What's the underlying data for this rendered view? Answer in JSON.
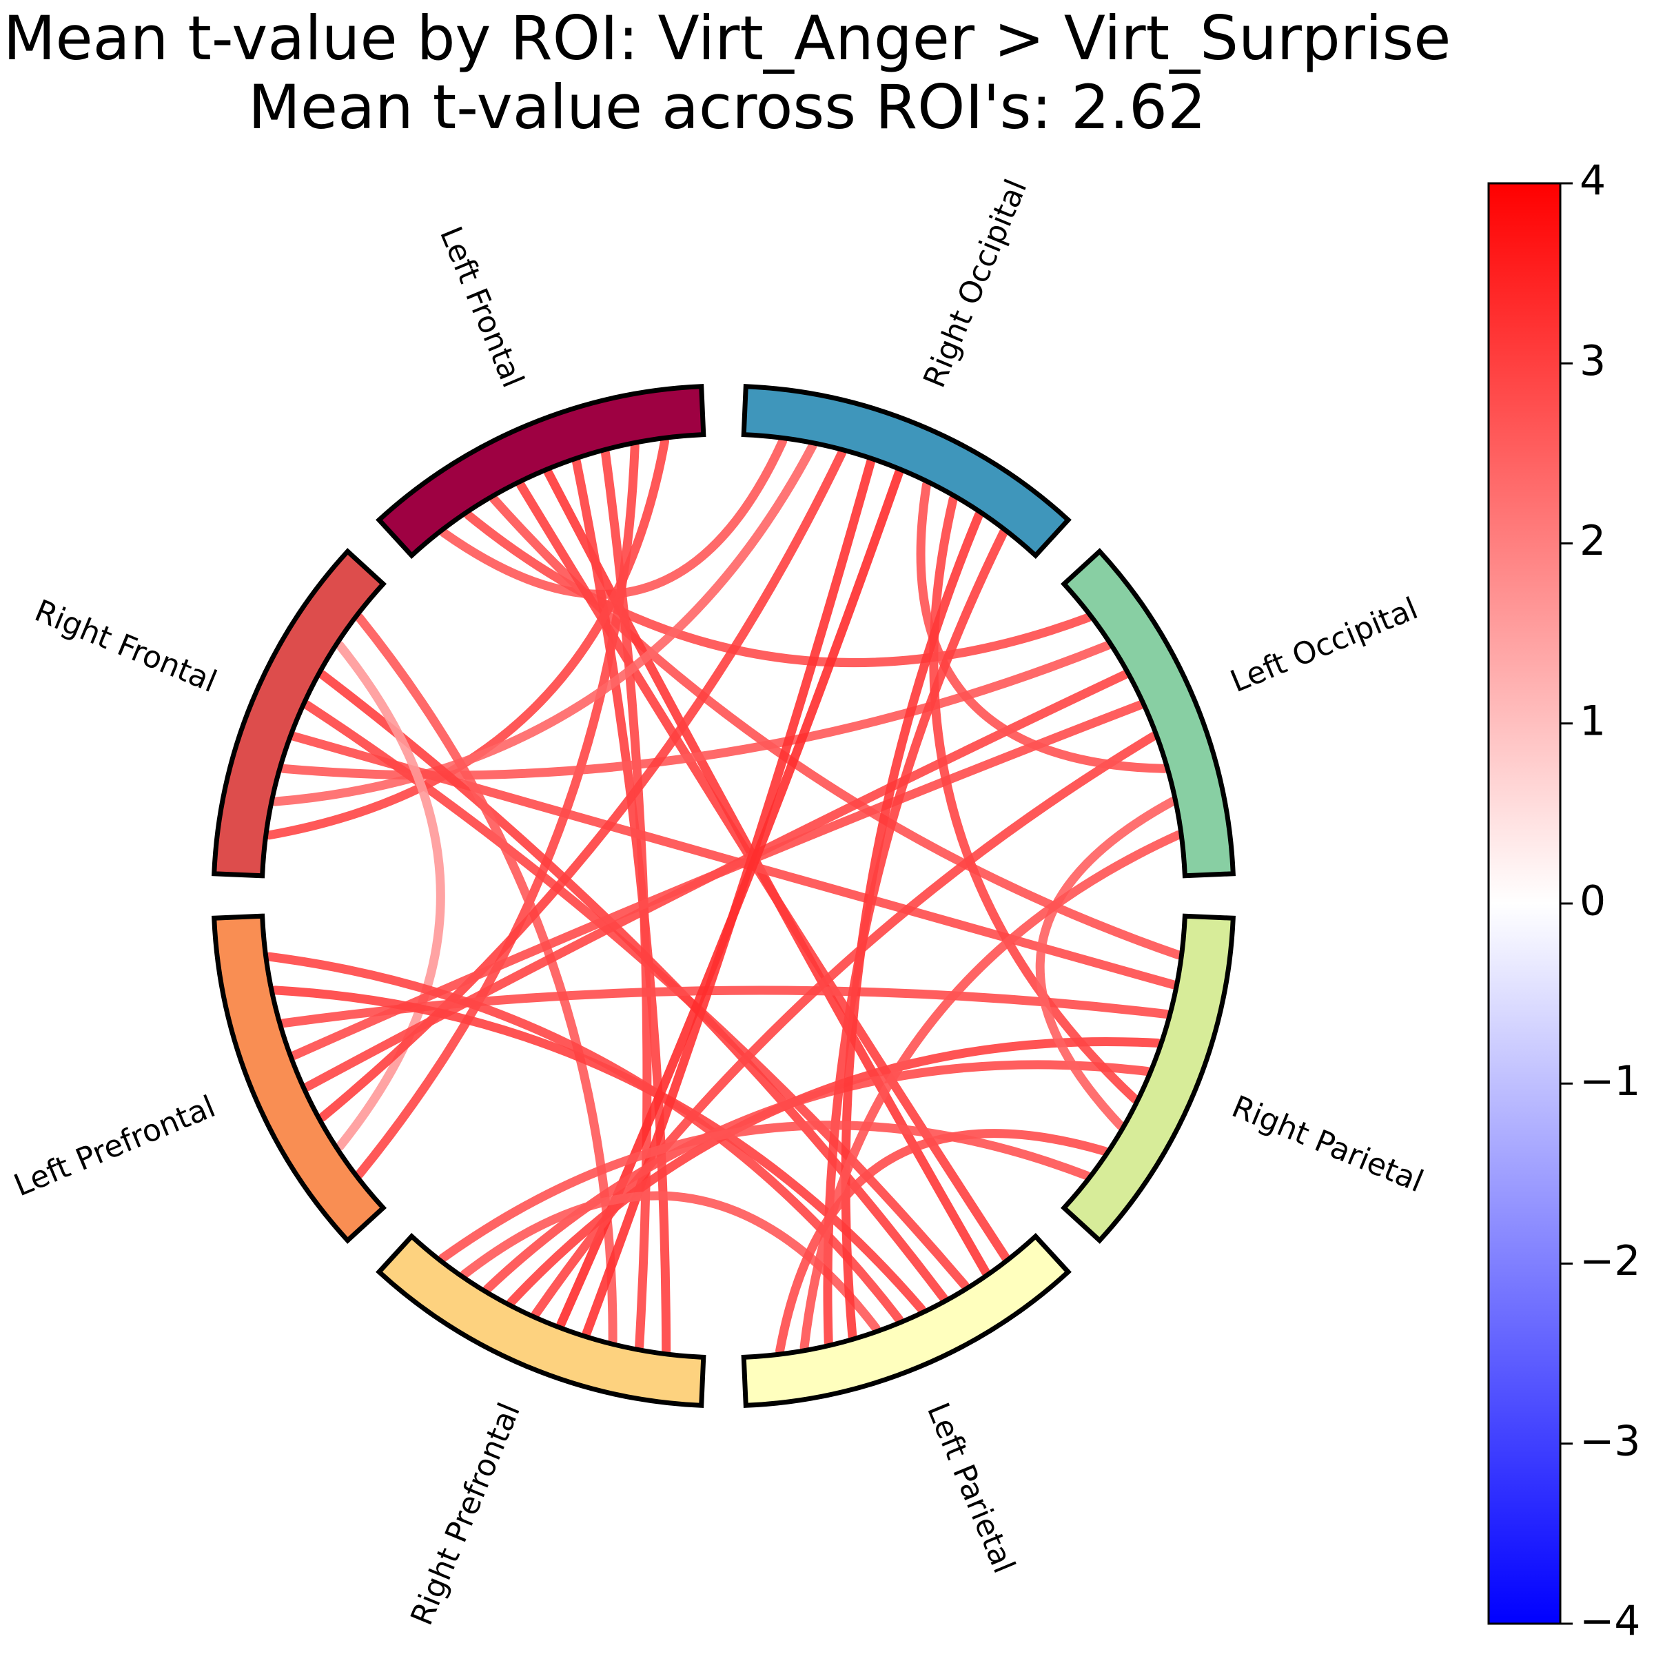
{
  "title": {
    "line1": "Mean t-value by ROI: Virt_Anger > Virt_Surprise",
    "line2": "Mean t-value across ROI's: 2.62"
  },
  "rois": [
    {
      "name": "Right Occipital",
      "color": "#3f96bb"
    },
    {
      "name": "Left Occipital",
      "color": "#88cfa3"
    },
    {
      "name": "Right Parietal",
      "color": "#d7ec99"
    },
    {
      "name": "Left Parietal",
      "color": "#ffffbe"
    },
    {
      "name": "Right Prefrontal",
      "color": "#fdd27f"
    },
    {
      "name": "Left Prefrontal",
      "color": "#f98e53"
    },
    {
      "name": "Right Frontal",
      "color": "#dd4d4c"
    },
    {
      "name": "Left Frontal",
      "color": "#9e0142"
    }
  ],
  "colorbar": {
    "min": -4,
    "max": 4,
    "ticks": [
      "4",
      "3",
      "2",
      "1",
      "0",
      "−1",
      "−2",
      "−3",
      "−4"
    ],
    "colors": [
      "#0000ff",
      "#ffffff",
      "#ff0000"
    ]
  },
  "connections": [
    {
      "from": "Left Frontal",
      "to": "Right Occipital",
      "t": 2.6
    },
    {
      "from": "Left Frontal",
      "to": "Left Occipital",
      "t": 2.8
    },
    {
      "from": "Left Frontal",
      "to": "Right Parietal",
      "t": 2.7
    },
    {
      "from": "Left Frontal",
      "to": "Left Parietal",
      "t": 3.0
    },
    {
      "from": "Left Frontal",
      "to": "Left Parietal",
      "t": 3.1
    },
    {
      "from": "Left Frontal",
      "to": "Right Prefrontal",
      "t": 3.0
    },
    {
      "from": "Left Frontal",
      "to": "Right Prefrontal",
      "t": 2.9
    },
    {
      "from": "Left Frontal",
      "to": "Left Prefrontal",
      "t": 2.9
    },
    {
      "from": "Left Frontal",
      "to": "Right Frontal",
      "t": 2.9
    },
    {
      "from": "Right Frontal",
      "to": "Right Occipital",
      "t": 2.4
    },
    {
      "from": "Right Frontal",
      "to": "Left Occipital",
      "t": 2.6
    },
    {
      "from": "Right Frontal",
      "to": "Right Parietal",
      "t": 2.8
    },
    {
      "from": "Right Frontal",
      "to": "Left Parietal",
      "t": 2.9
    },
    {
      "from": "Right Frontal",
      "to": "Left Parietal",
      "t": 3.0
    },
    {
      "from": "Right Frontal",
      "to": "Left Prefrontal",
      "t": 1.6
    },
    {
      "from": "Right Frontal",
      "to": "Right Prefrontal",
      "t": 2.6
    },
    {
      "from": "Left Prefrontal",
      "to": "Right Occipital",
      "t": 3.0
    },
    {
      "from": "Left Prefrontal",
      "to": "Left Occipital",
      "t": 2.9
    },
    {
      "from": "Left Prefrontal",
      "to": "Left Occipital",
      "t": 2.8
    },
    {
      "from": "Left Prefrontal",
      "to": "Right Parietal",
      "t": 2.8
    },
    {
      "from": "Left Prefrontal",
      "to": "Left Parietal",
      "t": 3.0
    },
    {
      "from": "Left Prefrontal",
      "to": "Left Parietal",
      "t": 2.9
    },
    {
      "from": "Right Prefrontal",
      "to": "Right Occipital",
      "t": 3.2
    },
    {
      "from": "Right Prefrontal",
      "to": "Right Occipital",
      "t": 3.3
    },
    {
      "from": "Right Prefrontal",
      "to": "Left Occipital",
      "t": 2.9
    },
    {
      "from": "Right Prefrontal",
      "to": "Right Parietal",
      "t": 3.0
    },
    {
      "from": "Right Prefrontal",
      "to": "Right Parietal",
      "t": 2.8
    },
    {
      "from": "Right Prefrontal",
      "to": "Left Parietal",
      "t": 2.6
    },
    {
      "from": "Right Occipital",
      "to": "Left Occipital",
      "t": 2.7
    },
    {
      "from": "Right Occipital",
      "to": "Right Parietal",
      "t": 2.9
    },
    {
      "from": "Right Occipital",
      "to": "Left Parietal",
      "t": 3.1
    },
    {
      "from": "Right Occipital",
      "to": "Left Parietal",
      "t": 3.0
    },
    {
      "from": "Left Occipital",
      "to": "Right Parietal",
      "t": 2.5
    },
    {
      "from": "Left Occipital",
      "to": "Left Parietal",
      "t": 2.7
    },
    {
      "from": "Right Parietal",
      "to": "Left Parietal",
      "t": 2.8
    },
    {
      "from": "Right Parietal",
      "to": "Right Prefrontal",
      "t": 2.7
    }
  ]
}
